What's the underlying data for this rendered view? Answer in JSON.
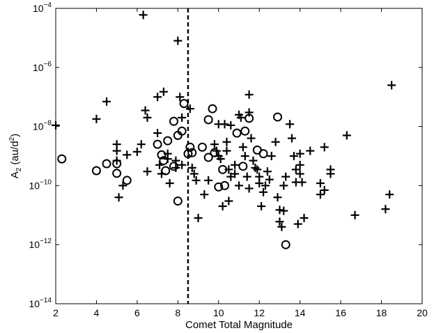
{
  "chart_data": {
    "type": "scatter",
    "title": "",
    "xlabel": "Comet Total Magnitude",
    "ylabel_main": "A",
    "ylabel_sub": "2",
    "ylabel_rest": " (au/d",
    "ylabel_sup": "2",
    "ylabel_close": ")",
    "xlim": [
      2,
      20
    ],
    "ylim": [
      1e-14,
      0.0001
    ],
    "yscale": "log",
    "grid": false,
    "legend": "none",
    "x_ticks": [
      2,
      4,
      6,
      8,
      10,
      12,
      14,
      16,
      18,
      20
    ],
    "x_tick_labels": [
      "2",
      "4",
      "6",
      "8",
      "10",
      "12",
      "14",
      "16",
      "18",
      "20"
    ],
    "y_ticks": [
      1e-14,
      1e-12,
      1e-10,
      1e-08,
      1e-06,
      0.0001
    ],
    "y_tick_base": "10",
    "y_tick_exponents": [
      "−14",
      "−12",
      "−10",
      "−8",
      "−6",
      "−4"
    ],
    "vline": {
      "x": 8.5,
      "style": "dashed",
      "color": "#000000"
    },
    "marker_color": "#000000",
    "series": [
      {
        "marker": "circle",
        "points": [
          [
            2.3,
            8e-10
          ],
          [
            4.0,
            3.2e-10
          ],
          [
            4.5,
            5.5e-10
          ],
          [
            5.0,
            5.5e-10
          ],
          [
            5.0,
            2.6e-10
          ],
          [
            5.5,
            1.5e-10
          ],
          [
            7.0,
            2.5e-09
          ],
          [
            7.2,
            1.1e-09
          ],
          [
            7.3,
            7e-10
          ],
          [
            7.4,
            3.2e-10
          ],
          [
            7.5,
            3.3e-09
          ],
          [
            7.8,
            1.5e-08
          ],
          [
            7.8,
            4.5e-10
          ],
          [
            8.0,
            5e-09
          ],
          [
            8.0,
            3e-11
          ],
          [
            8.2,
            7e-09
          ],
          [
            8.3,
            6e-08
          ],
          [
            8.5,
            1.2e-09
          ],
          [
            8.6,
            2e-09
          ],
          [
            8.7,
            1.3e-09
          ],
          [
            9.2,
            2e-09
          ],
          [
            9.5,
            1.7e-08
          ],
          [
            9.5,
            9e-10
          ],
          [
            9.7,
            4e-08
          ],
          [
            9.8,
            1.3e-09
          ],
          [
            10.0,
            9e-11
          ],
          [
            10.2,
            3.5e-10
          ],
          [
            10.3,
            1e-10
          ],
          [
            10.9,
            6e-09
          ],
          [
            11.2,
            4.5e-10
          ],
          [
            11.3,
            7e-09
          ],
          [
            11.5,
            1.9e-08
          ],
          [
            11.9,
            1.6e-09
          ],
          [
            12.2,
            1.2e-09
          ],
          [
            12.9,
            2.1e-08
          ],
          [
            13.3,
            1e-12
          ]
        ]
      },
      {
        "marker": "plus",
        "points": [
          [
            2.0,
            1.1e-08
          ],
          [
            4.0,
            1.8e-08
          ],
          [
            4.5,
            7e-08
          ],
          [
            5.0,
            2.5e-09
          ],
          [
            5.0,
            1.5e-09
          ],
          [
            5.0,
            7e-10
          ],
          [
            5.1,
            4e-11
          ],
          [
            5.3,
            1e-10
          ],
          [
            5.5,
            1.1e-09
          ],
          [
            6.0,
            1.4e-09
          ],
          [
            6.2,
            2.5e-09
          ],
          [
            6.3,
            6e-05
          ],
          [
            6.4,
            3.5e-08
          ],
          [
            6.5,
            2e-08
          ],
          [
            6.5,
            3e-10
          ],
          [
            7.0,
            1e-07
          ],
          [
            7.0,
            6e-09
          ],
          [
            7.1,
            5e-10
          ],
          [
            7.2,
            2.5e-10
          ],
          [
            7.3,
            1.5e-07
          ],
          [
            7.5,
            1.2e-09
          ],
          [
            7.5,
            8e-10
          ],
          [
            7.6,
            1.2e-10
          ],
          [
            7.9,
            7e-10
          ],
          [
            7.9,
            4e-10
          ],
          [
            8.0,
            8e-06
          ],
          [
            8.1,
            1e-07
          ],
          [
            8.2,
            2e-08
          ],
          [
            8.2,
            5e-10
          ],
          [
            8.6,
            4e-08
          ],
          [
            8.7,
            4e-10
          ],
          [
            8.8,
            2.5e-10
          ],
          [
            8.9,
            1.5e-10
          ],
          [
            9.0,
            8e-12
          ],
          [
            9.3,
            5e-11
          ],
          [
            9.5,
            1.5e-10
          ],
          [
            9.8,
            2.5e-09
          ],
          [
            9.9,
            1.5e-09
          ],
          [
            10.0,
            1.2e-08
          ],
          [
            10.0,
            1e-09
          ],
          [
            10.1,
            8e-10
          ],
          [
            10.2,
            2e-11
          ],
          [
            10.3,
            1.2e-08
          ],
          [
            10.4,
            3e-09
          ],
          [
            10.4,
            1.5e-09
          ],
          [
            10.5,
            3.5e-10
          ],
          [
            10.5,
            3e-11
          ],
          [
            10.6,
            1.1e-08
          ],
          [
            10.6,
            2e-10
          ],
          [
            10.8,
            5e-10
          ],
          [
            10.8,
            2.5e-10
          ],
          [
            11.0,
            2.5e-08
          ],
          [
            11.0,
            1e-10
          ],
          [
            11.1,
            2e-08
          ],
          [
            11.2,
            2e-09
          ],
          [
            11.3,
            1e-09
          ],
          [
            11.4,
            2e-10
          ],
          [
            11.5,
            1.2e-07
          ],
          [
            11.5,
            3e-08
          ],
          [
            11.5,
            8e-11
          ],
          [
            11.6,
            4e-09
          ],
          [
            11.7,
            7e-10
          ],
          [
            11.8,
            4e-10
          ],
          [
            11.9,
            3.5e-10
          ],
          [
            12.0,
            2e-10
          ],
          [
            12.0,
            1.2e-10
          ],
          [
            12.1,
            2e-11
          ],
          [
            12.2,
            6e-11
          ],
          [
            12.3,
            1e-10
          ],
          [
            12.4,
            3e-10
          ],
          [
            12.5,
            1.6e-10
          ],
          [
            12.6,
            1e-09
          ],
          [
            12.8,
            3e-09
          ],
          [
            12.9,
            4e-11
          ],
          [
            13.0,
            1.5e-11
          ],
          [
            13.0,
            6e-12
          ],
          [
            13.1,
            4e-12
          ],
          [
            13.2,
            1.4e-11
          ],
          [
            13.2,
            1e-10
          ],
          [
            13.3,
            2e-10
          ],
          [
            13.5,
            1.2e-08
          ],
          [
            13.6,
            4e-09
          ],
          [
            13.7,
            1e-09
          ],
          [
            13.8,
            3.5e-10
          ],
          [
            13.8,
            1.3e-10
          ],
          [
            13.9,
            5e-12
          ],
          [
            14.0,
            1.2e-09
          ],
          [
            14.0,
            5e-10
          ],
          [
            14.0,
            2.5e-10
          ],
          [
            14.1,
            1.3e-10
          ],
          [
            14.2,
            8e-12
          ],
          [
            14.5,
            1.5e-09
          ],
          [
            15.0,
            1.2e-10
          ],
          [
            15.0,
            5e-11
          ],
          [
            15.2,
            2e-09
          ],
          [
            15.2,
            7e-11
          ],
          [
            15.5,
            3.5e-10
          ],
          [
            15.5,
            2.5e-10
          ],
          [
            16.3,
            5e-09
          ],
          [
            16.7,
            1e-11
          ],
          [
            18.2,
            1.6e-11
          ],
          [
            18.4,
            5e-11
          ],
          [
            18.5,
            2.5e-07
          ]
        ]
      }
    ]
  }
}
